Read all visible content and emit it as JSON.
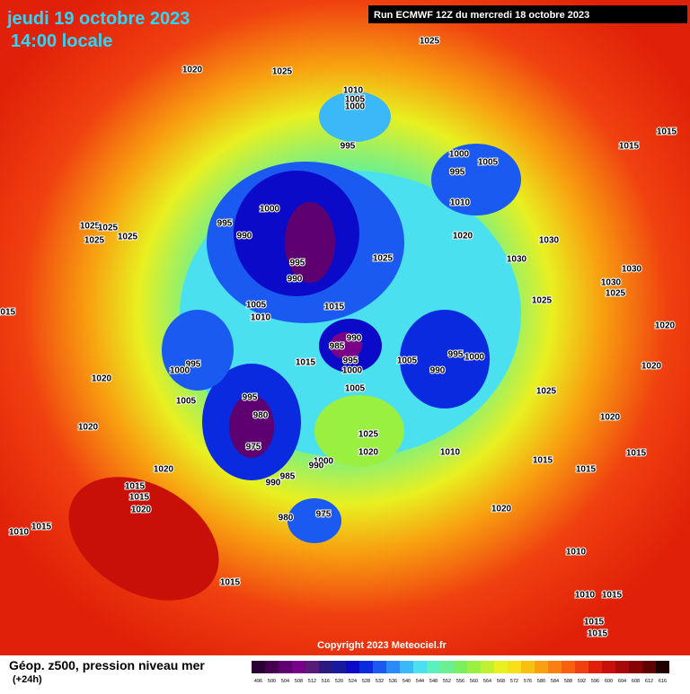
{
  "header": {
    "date": "jeudi 19 octobre 2023",
    "time": "14:00 locale",
    "run": "Run ECMWF 12Z du mercredi 18 octobre 2023"
  },
  "copyright": "Copyright 2023 Meteociel.fr",
  "legend": {
    "title": "Géop. z500, pression niveau mer",
    "subtitle": "(+24h)",
    "levels": [
      496,
      500,
      504,
      508,
      512,
      516,
      520,
      524,
      528,
      532,
      536,
      540,
      544,
      548,
      552,
      556,
      560,
      564,
      568,
      572,
      576,
      580,
      584,
      588,
      592,
      596,
      600,
      604,
      608,
      612,
      616
    ],
    "colors": [
      "#2b0033",
      "#45004f",
      "#5e0070",
      "#790088",
      "#5a1a7a",
      "#2a1a80",
      "#1a1aa0",
      "#0a0ac8",
      "#0a2ae0",
      "#1a5af0",
      "#2a8af8",
      "#3ab8f8",
      "#4ae0f0",
      "#5af0c0",
      "#6af090",
      "#7af060",
      "#9af040",
      "#c0f030",
      "#e8f020",
      "#f8e018",
      "#f8c010",
      "#f8a010",
      "#f88010",
      "#f86010",
      "#f04010",
      "#e02008",
      "#c81008",
      "#a80808",
      "#880404",
      "#600202",
      "#200000"
    ]
  },
  "isobar_labels": [
    1025,
    1020,
    1025,
    1010,
    1005,
    1000,
    995,
    1015,
    1015,
    1000,
    995,
    1005,
    1010,
    1000,
    995,
    990,
    1020,
    1030,
    1025,
    1030,
    995,
    990,
    1030,
    1030,
    1025,
    1025,
    1015,
    1005,
    1010,
    990,
    985,
    995,
    1000,
    995,
    1000,
    1015,
    995,
    1000,
    1005,
    990,
    1020,
    1020,
    1020,
    1005,
    1005,
    1025,
    995,
    980,
    975,
    1020,
    1020,
    1025,
    1020,
    1010,
    1000,
    990,
    1015,
    1015,
    1015,
    1020,
    985,
    990,
    1015,
    1015,
    1020,
    1020,
    980,
    975,
    1015,
    1010,
    1010,
    1015,
    1010,
    1015,
    1015,
    1015,
    1015,
    1025,
    1025,
    1025,
    1025
  ]
}
